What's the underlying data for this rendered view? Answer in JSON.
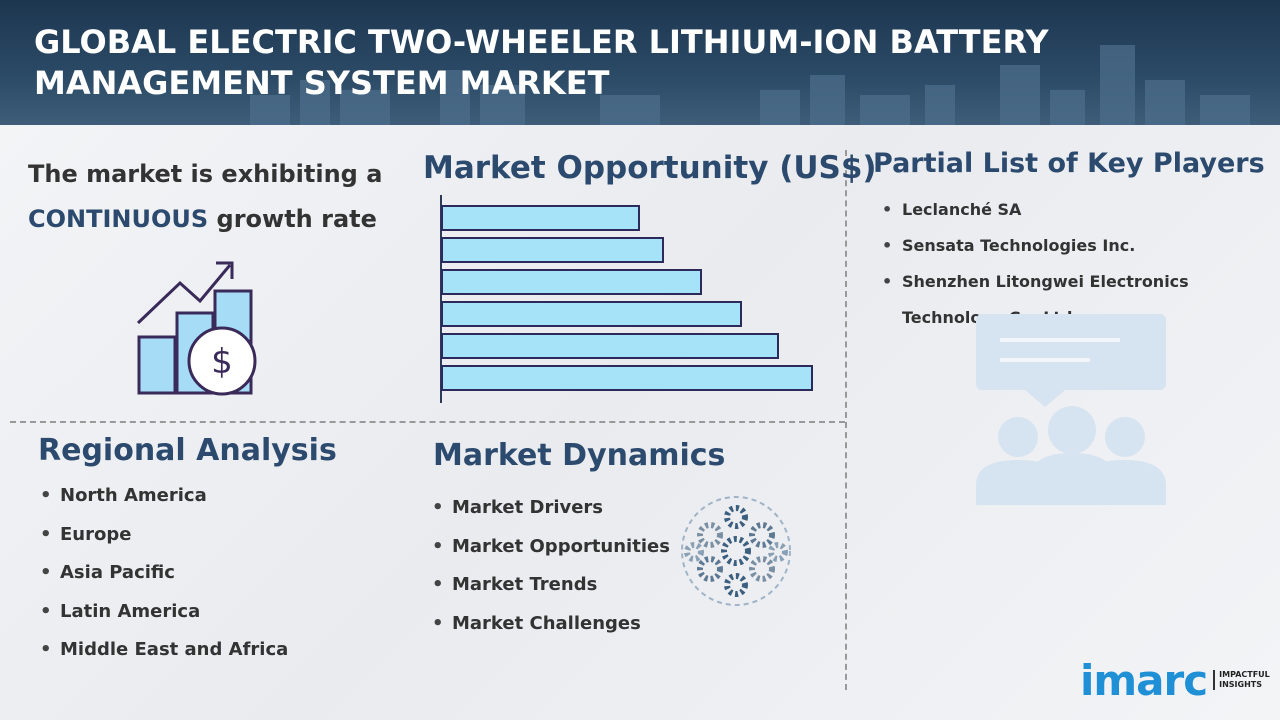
{
  "header": {
    "title": "GLOBAL ELECTRIC TWO-WHEELER LITHIUM-ION BATTERY MANAGEMENT SYSTEM MARKET"
  },
  "growth": {
    "line1": "The market is exhibiting a",
    "highlight": "CONTINUOUS",
    "line2": "growth rate"
  },
  "opportunity": {
    "title": "Market Opportunity (US$)"
  },
  "key_players": {
    "title": "Partial List of Key Players",
    "items": [
      "Leclanché SA",
      "Sensata Technologies Inc.",
      "Shenzhen Litongwei Electronics Technology Co. Ltd."
    ]
  },
  "regional": {
    "title": "Regional Analysis",
    "items": [
      "North America",
      "Europe",
      "Asia Pacific",
      "Latin America",
      "Middle East and Africa"
    ]
  },
  "dynamics": {
    "title": "Market Dynamics",
    "items": [
      "Market Drivers",
      "Market Opportunities",
      "Market Trends",
      "Market Challenges"
    ]
  },
  "logo": {
    "brand": "imarc",
    "tag1": "IMPACTFUL",
    "tag2": "INSIGHTS"
  }
}
